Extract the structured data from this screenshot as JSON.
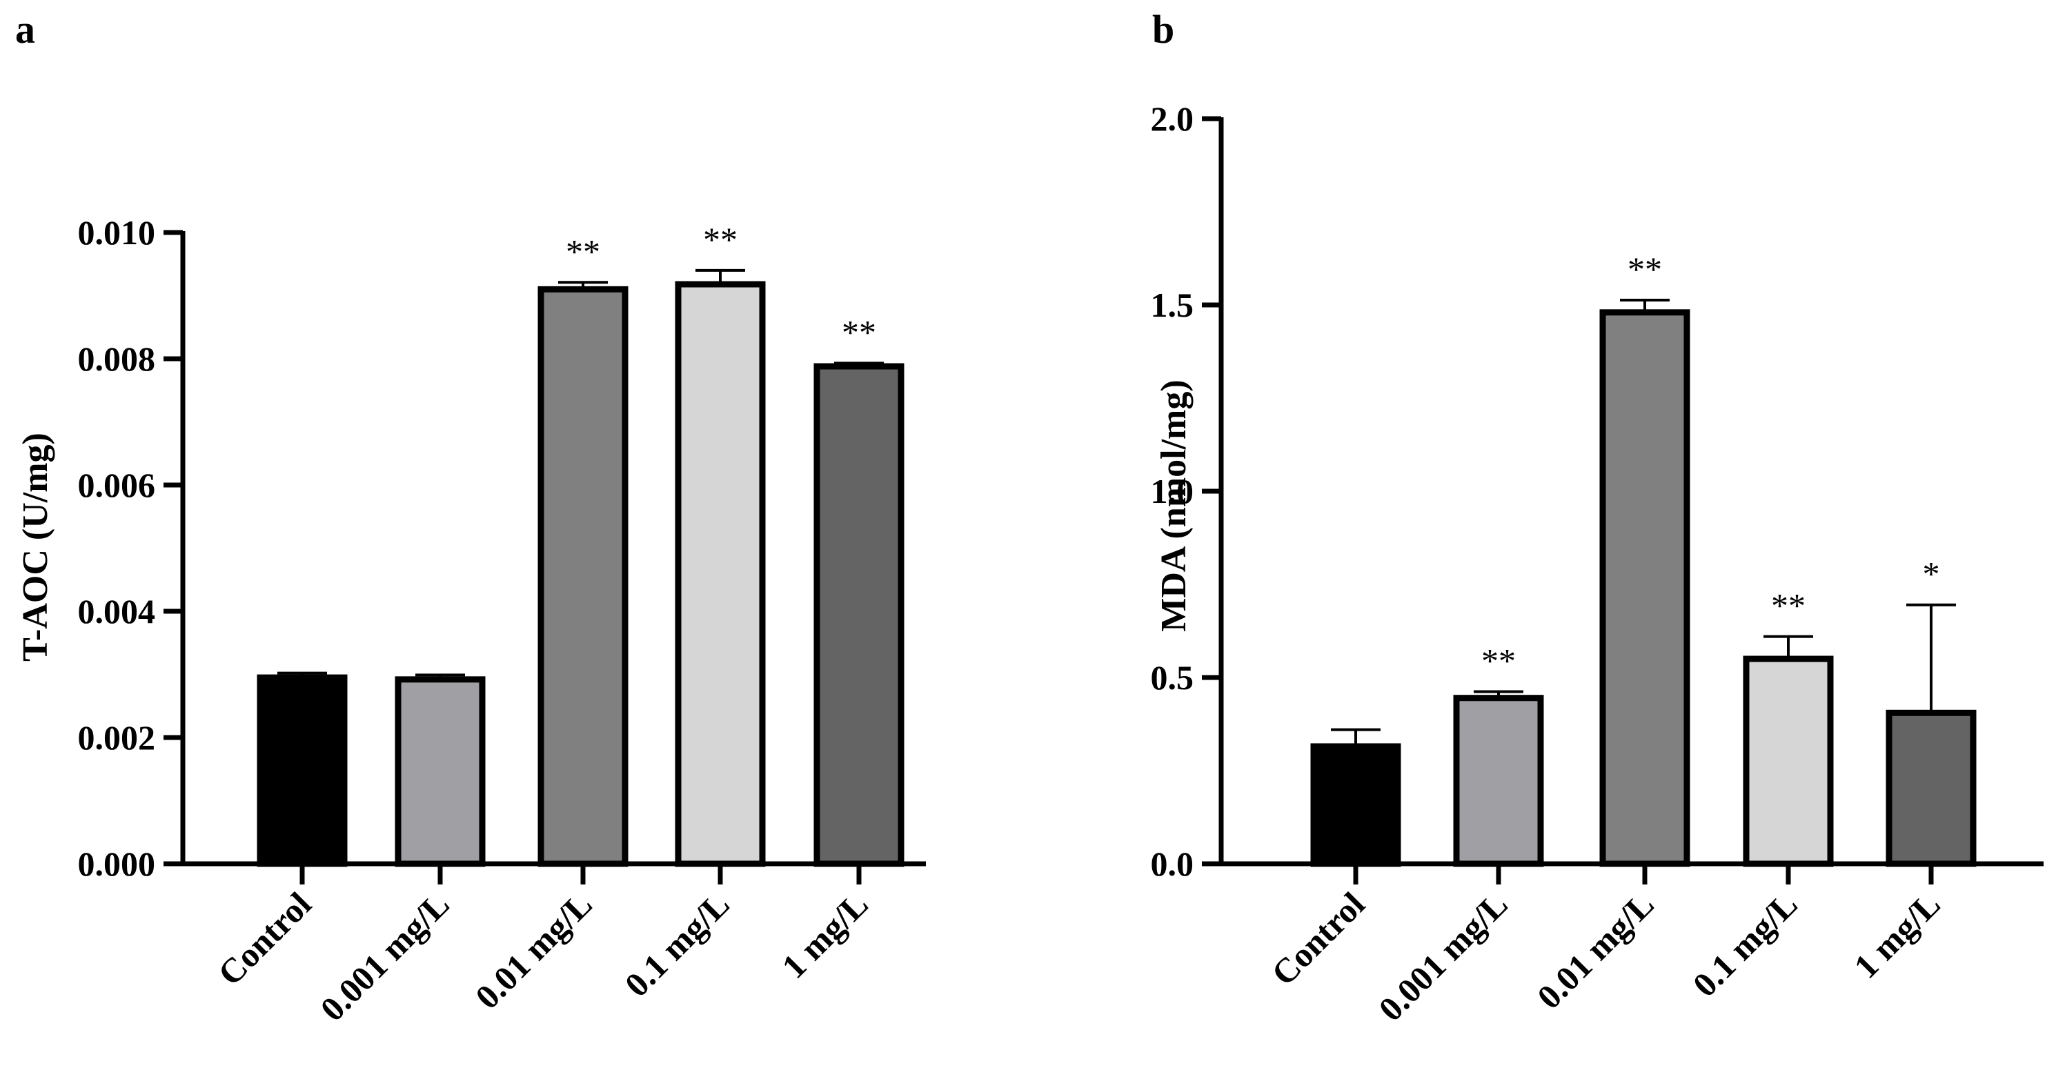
{
  "chart_data": [
    {
      "panel": "a",
      "type": "bar",
      "title": "",
      "xlabel": "",
      "ylabel": "T-AOC (U/mg)",
      "ylim": [
        0,
        0.01
      ],
      "yticks": [
        "0.000",
        "0.002",
        "0.004",
        "0.006",
        "0.008",
        "0.010"
      ],
      "categories": [
        "Control",
        "0.001 mg/L",
        "0.01 mg/L",
        "0.1 mg/L",
        "1 mg/L"
      ],
      "values": [
        0.00295,
        0.00292,
        0.0091,
        0.00918,
        0.00788
      ],
      "errors": [
        7e-05,
        7e-05,
        0.00011,
        0.00022,
        5e-05
      ],
      "significance": [
        "",
        "",
        "**",
        "**",
        "**"
      ],
      "colors": [
        "#000000",
        "#a0a0a4",
        "#808080",
        "#d6d6d6",
        "#646464"
      ]
    },
    {
      "panel": "b",
      "type": "bar",
      "title": "",
      "xlabel": "",
      "ylabel": "MDA (nmol/mg)",
      "ylim": [
        0,
        2.0
      ],
      "yticks": [
        "0.0",
        "0.5",
        "1.0",
        "1.5",
        "2.0"
      ],
      "categories": [
        "Control",
        "0.001 mg/L",
        "0.01 mg/L",
        "0.1 mg/L",
        "1 mg/L"
      ],
      "values": [
        0.315,
        0.445,
        1.48,
        0.55,
        0.405
      ],
      "errors": [
        0.045,
        0.017,
        0.033,
        0.06,
        0.29
      ],
      "significance": [
        "",
        "**",
        "**",
        "**",
        "*"
      ],
      "colors": [
        "#000000",
        "#a0a0a4",
        "#808080",
        "#d6d6d6",
        "#646464"
      ]
    }
  ]
}
